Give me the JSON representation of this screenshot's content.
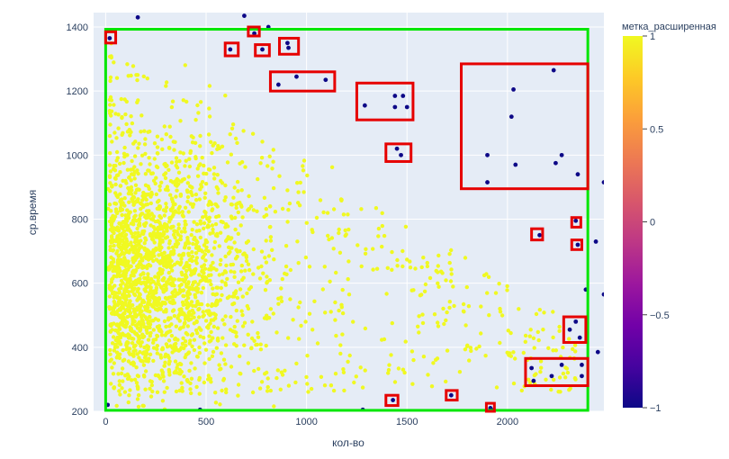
{
  "chart_data": {
    "type": "scatter",
    "xlabel": "кол-во",
    "ylabel": "ср.время",
    "xlim": [
      -60,
      2480
    ],
    "ylim": [
      200,
      1445
    ],
    "x_ticks": [
      0,
      500,
      1000,
      1500,
      2000
    ],
    "y_ticks": [
      200,
      400,
      600,
      800,
      1000,
      1200,
      1400
    ],
    "x_tick_labels": [
      "0",
      "500",
      "1000",
      "1500",
      "2000"
    ],
    "y_tick_labels": [
      "200",
      "400",
      "600",
      "800",
      "1000",
      "1200",
      "1400"
    ],
    "grid": true,
    "plot_background": "#e5ecf6",
    "colorbar": {
      "title": "метка_расширенная",
      "ticks": [
        1,
        0.5,
        0,
        -0.5,
        -1
      ],
      "tick_labels": [
        "1",
        "0.5",
        "0",
        "−0.5",
        "−1"
      ],
      "colorscale": [
        "#0d0887",
        "#46039f",
        "#7201a8",
        "#9c179e",
        "#bd3786",
        "#d8576b",
        "#ed7953",
        "#fb9f3a",
        "#fdca26",
        "#f0f921"
      ]
    },
    "normal_color": "#f0f921",
    "anomaly_color": "#0d0887",
    "normal_cluster": {
      "label": 1,
      "points_approx": 2400,
      "note_density": "dense near x 0-600, y 300-1000; sparse tail to x 2400"
    },
    "anomalies": [
      {
        "x": 20,
        "y": 1365
      },
      {
        "x": 160,
        "y": 1430
      },
      {
        "x": 690,
        "y": 1435
      },
      {
        "x": 740,
        "y": 1380
      },
      {
        "x": 810,
        "y": 1400
      },
      {
        "x": 620,
        "y": 1330
      },
      {
        "x": 780,
        "y": 1330
      },
      {
        "x": 905,
        "y": 1350
      },
      {
        "x": 910,
        "y": 1335
      },
      {
        "x": 950,
        "y": 1245
      },
      {
        "x": 1095,
        "y": 1235
      },
      {
        "x": 860,
        "y": 1220
      },
      {
        "x": 1290,
        "y": 1155
      },
      {
        "x": 1440,
        "y": 1185
      },
      {
        "x": 1480,
        "y": 1185
      },
      {
        "x": 1440,
        "y": 1150
      },
      {
        "x": 1500,
        "y": 1150
      },
      {
        "x": 1450,
        "y": 1020
      },
      {
        "x": 1470,
        "y": 1000
      },
      {
        "x": 2030,
        "y": 1205
      },
      {
        "x": 2020,
        "y": 1120
      },
      {
        "x": 2230,
        "y": 1265
      },
      {
        "x": 1900,
        "y": 1000
      },
      {
        "x": 2040,
        "y": 970
      },
      {
        "x": 2270,
        "y": 1000
      },
      {
        "x": 2240,
        "y": 975
      },
      {
        "x": 1900,
        "y": 915
      },
      {
        "x": 2350,
        "y": 940
      },
      {
        "x": 2480,
        "y": 915
      },
      {
        "x": 2340,
        "y": 795
      },
      {
        "x": 2160,
        "y": 750
      },
      {
        "x": 2440,
        "y": 730
      },
      {
        "x": 2350,
        "y": 720
      },
      {
        "x": 2390,
        "y": 580
      },
      {
        "x": 2480,
        "y": 565
      },
      {
        "x": 2340,
        "y": 480
      },
      {
        "x": 2310,
        "y": 455
      },
      {
        "x": 2360,
        "y": 430
      },
      {
        "x": 2450,
        "y": 385
      },
      {
        "x": 2120,
        "y": 335
      },
      {
        "x": 2270,
        "y": 345
      },
      {
        "x": 2370,
        "y": 345
      },
      {
        "x": 2220,
        "y": 310
      },
      {
        "x": 2370,
        "y": 310
      },
      {
        "x": 2130,
        "y": 295
      },
      {
        "x": 1430,
        "y": 235
      },
      {
        "x": 1720,
        "y": 250
      },
      {
        "x": 1915,
        "y": 210
      },
      {
        "x": 1920,
        "y": 205
      },
      {
        "x": 1280,
        "y": 205
      },
      {
        "x": 10,
        "y": 220
      },
      {
        "x": 180,
        "y": 200
      },
      {
        "x": 280,
        "y": 200
      },
      {
        "x": 470,
        "y": 205
      },
      {
        "x": 60,
        "y": 200
      }
    ],
    "outer_box": {
      "x0": 0,
      "x1": 2400,
      "y0": 203,
      "y1": 1393,
      "color": "#00e600"
    },
    "highlight_boxes": [
      {
        "x0": 0,
        "x1": 50,
        "y0": 1350,
        "y1": 1385
      },
      {
        "x0": 595,
        "x1": 660,
        "y0": 1310,
        "y1": 1350
      },
      {
        "x0": 710,
        "x1": 765,
        "y0": 1372,
        "y1": 1400
      },
      {
        "x0": 745,
        "x1": 815,
        "y0": 1310,
        "y1": 1345
      },
      {
        "x0": 865,
        "x1": 960,
        "y0": 1315,
        "y1": 1365
      },
      {
        "x0": 820,
        "x1": 1140,
        "y0": 1200,
        "y1": 1260
      },
      {
        "x0": 1250,
        "x1": 1530,
        "y0": 1110,
        "y1": 1225
      },
      {
        "x0": 1395,
        "x1": 1520,
        "y0": 980,
        "y1": 1035
      },
      {
        "x0": 1770,
        "x1": 2400,
        "y0": 895,
        "y1": 1285
      },
      {
        "x0": 2120,
        "x1": 2175,
        "y0": 735,
        "y1": 770
      },
      {
        "x0": 2320,
        "x1": 2365,
        "y0": 775,
        "y1": 805
      },
      {
        "x0": 2320,
        "x1": 2370,
        "y0": 705,
        "y1": 735
      },
      {
        "x0": 2280,
        "x1": 2390,
        "y0": 415,
        "y1": 495
      },
      {
        "x0": 2090,
        "x1": 2400,
        "y0": 280,
        "y1": 365
      },
      {
        "x0": 1395,
        "x1": 1455,
        "y0": 218,
        "y1": 250
      },
      {
        "x0": 1695,
        "x1": 1750,
        "y0": 235,
        "y1": 265
      },
      {
        "x0": 1895,
        "x1": 1935,
        "y0": 200,
        "y1": 225
      }
    ],
    "highlight_color": "#e60000"
  }
}
